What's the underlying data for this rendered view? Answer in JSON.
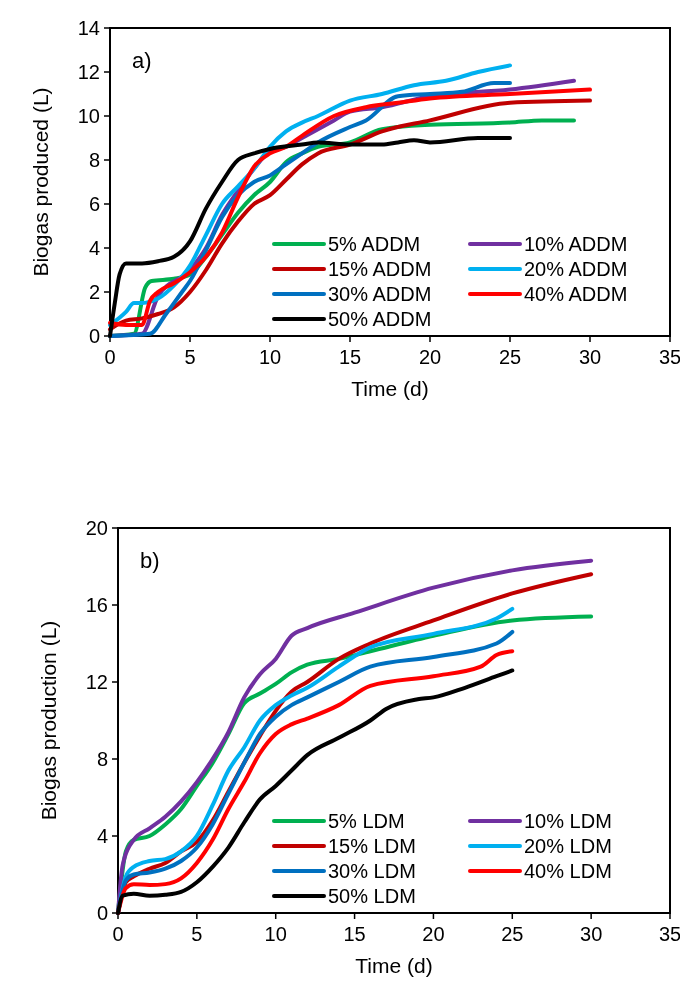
{
  "chart_data": [
    {
      "type": "line",
      "title": "a)",
      "xlabel": "Time (d)",
      "ylabel": "Biogas produced (L)",
      "xlim": [
        0,
        35
      ],
      "xticks": [
        0,
        5,
        10,
        15,
        20,
        25,
        30,
        35
      ],
      "ylim": [
        0,
        14
      ],
      "yticks": [
        0,
        2,
        4,
        6,
        8,
        10,
        12,
        14
      ],
      "grid": false,
      "legend": "bottom right",
      "marker": "none",
      "line_style": "solid",
      "series": [
        {
          "name": "5% ADDM",
          "color": "#00b050",
          "x": [
            0,
            1.5,
            2.2,
            2.6,
            4,
            5,
            6,
            7,
            8,
            9,
            10,
            11,
            12,
            13,
            15,
            17,
            20,
            25,
            27,
            29
          ],
          "values": [
            0,
            0.1,
            2.2,
            2.5,
            2.6,
            2.8,
            3.6,
            4.6,
            5.6,
            6.4,
            7,
            7.9,
            8.3,
            8.6,
            8.8,
            9.4,
            9.6,
            9.7,
            9.8,
            9.8
          ]
        },
        {
          "name": "10% ADDM",
          "color": "#7030a0",
          "x": [
            0,
            2,
            3,
            5,
            6,
            7,
            8,
            9,
            10,
            11,
            12,
            14,
            15,
            17,
            20,
            25,
            29
          ],
          "values": [
            0,
            0.1,
            1.8,
            3,
            4,
            5.5,
            6.6,
            7.6,
            8.4,
            8.6,
            9,
            9.8,
            10.2,
            10.4,
            10.9,
            11.2,
            11.6
          ]
        },
        {
          "name": "15% ADDM",
          "color": "#c00000",
          "x": [
            0,
            1,
            2,
            3,
            4,
            5,
            6,
            7,
            8,
            9,
            10,
            11,
            12,
            13,
            15,
            17,
            20,
            25,
            30
          ],
          "values": [
            0.3,
            0.7,
            0.8,
            1,
            1.3,
            2,
            3,
            4.2,
            5.2,
            6,
            6.4,
            7.1,
            7.8,
            8.3,
            8.7,
            9.3,
            9.8,
            10.6,
            10.7
          ]
        },
        {
          "name": "20% ADDM",
          "color": "#00b0f0",
          "x": [
            0,
            1,
            1.5,
            2,
            3,
            4,
            5,
            6,
            7,
            8,
            9,
            10,
            11,
            12,
            13,
            15,
            17,
            19,
            21,
            23,
            25
          ],
          "values": [
            0.5,
            1.1,
            1.5,
            1.5,
            1.7,
            2.3,
            3.2,
            4.6,
            6,
            6.8,
            7.6,
            8.6,
            9.3,
            9.7,
            10,
            10.7,
            11,
            11.4,
            11.6,
            12,
            12.3
          ]
        },
        {
          "name": "30% ADDM",
          "color": "#0070c0",
          "x": [
            0,
            2.5,
            3.5,
            4.5,
            5,
            6,
            7,
            8,
            9,
            10,
            11,
            12,
            13,
            15,
            16,
            18,
            20,
            22,
            24,
            25
          ],
          "values": [
            0,
            0.1,
            1,
            2,
            2.5,
            3.9,
            5.4,
            6.4,
            7,
            7.3,
            7.8,
            8.3,
            8.8,
            9.5,
            9.8,
            10.9,
            11,
            11.1,
            11.5,
            11.5
          ]
        },
        {
          "name": "40% ADDM",
          "color": "#ff0000",
          "x": [
            0,
            1,
            2,
            2.5,
            3,
            4,
            5,
            6,
            7,
            8,
            9,
            10,
            11,
            12,
            14,
            16,
            18,
            20,
            25,
            30
          ],
          "values": [
            0.6,
            0.5,
            0.5,
            1.6,
            2,
            2.4,
            2.9,
            3.6,
            4.7,
            6.3,
            7.7,
            8.3,
            8.6,
            9.1,
            10,
            10.4,
            10.6,
            10.8,
            11,
            11.2
          ]
        },
        {
          "name": "50% ADDM",
          "color": "#000000",
          "x": [
            0,
            0.3,
            0.6,
            1,
            1.5,
            2,
            3,
            4,
            5,
            6,
            7,
            8,
            9,
            10,
            12,
            13,
            15,
            17,
            18,
            19,
            20,
            23,
            25
          ],
          "values": [
            0,
            1.5,
            2.8,
            3.3,
            3.3,
            3.3,
            3.4,
            3.6,
            4.3,
            5.8,
            7,
            8,
            8.3,
            8.5,
            8.7,
            8.8,
            8.7,
            8.7,
            8.8,
            8.9,
            8.8,
            9,
            9
          ]
        }
      ]
    },
    {
      "type": "line",
      "title": "b)",
      "xlabel": "Time (d)",
      "ylabel": "Biogas production (L)",
      "xlim": [
        0,
        35
      ],
      "xticks": [
        0,
        5,
        10,
        15,
        20,
        25,
        30,
        35
      ],
      "ylim": [
        0,
        20
      ],
      "yticks": [
        0,
        4,
        8,
        12,
        16,
        20
      ],
      "grid": false,
      "legend": "bottom right",
      "marker": "none",
      "line_style": "solid",
      "series": [
        {
          "name": "5% LDM",
          "color": "#00b050",
          "x": [
            0,
            0.5,
            1,
            2,
            3,
            4,
            5,
            6,
            7,
            8,
            9,
            10,
            11,
            12,
            14,
            16,
            20,
            25,
            30
          ],
          "values": [
            0,
            3.2,
            3.8,
            4,
            4.6,
            5.4,
            6.6,
            7.8,
            9.3,
            10.9,
            11.4,
            11.9,
            12.5,
            12.9,
            13.2,
            13.6,
            14.4,
            15.2,
            15.4
          ]
        },
        {
          "name": "10% LDM",
          "color": "#7030a0",
          "x": [
            0,
            0.3,
            1,
            2,
            3,
            4,
            5,
            6,
            7,
            8,
            9,
            10,
            11,
            12,
            15,
            20,
            25,
            30
          ],
          "values": [
            0,
            2.5,
            3.8,
            4.4,
            5,
            5.8,
            6.8,
            8,
            9.4,
            11.2,
            12.4,
            13.2,
            14.4,
            14.8,
            15.6,
            16.9,
            17.8,
            18.3
          ]
        },
        {
          "name": "15% LDM",
          "color": "#c00000",
          "x": [
            0,
            0.5,
            1,
            2,
            3,
            4,
            5,
            6,
            7,
            8,
            9,
            10,
            11,
            12,
            14,
            16,
            20,
            25,
            30
          ],
          "values": [
            0,
            1.6,
            1.9,
            2.3,
            2.6,
            3.2,
            3.7,
            4.8,
            6.3,
            7.8,
            9.2,
            10.5,
            11.5,
            12,
            13.2,
            14,
            15.2,
            16.6,
            17.6
          ]
        },
        {
          "name": "20% LDM",
          "color": "#00b0f0",
          "x": [
            0,
            0.5,
            1,
            2,
            3,
            4,
            5,
            6,
            7,
            8,
            9,
            10,
            11,
            12,
            14,
            16,
            20,
            24,
            25
          ],
          "values": [
            0,
            1.9,
            2.4,
            2.7,
            2.8,
            3.2,
            4,
            5.6,
            7.4,
            8.6,
            10,
            10.8,
            11.3,
            11.7,
            12.8,
            13.8,
            14.5,
            15.3,
            15.8
          ]
        },
        {
          "name": "30% LDM",
          "color": "#0070c0",
          "x": [
            0,
            0.5,
            1,
            2,
            3,
            4,
            5,
            6,
            7,
            8,
            9,
            10,
            11,
            12,
            14,
            16,
            20,
            24,
            25
          ],
          "values": [
            0,
            1.7,
            2,
            2.1,
            2.3,
            2.7,
            3.4,
            4.6,
            6.2,
            7.8,
            9.3,
            10.2,
            10.8,
            11.2,
            12,
            12.8,
            13.3,
            14,
            14.6
          ]
        },
        {
          "name": "40% LDM",
          "color": "#ff0000",
          "x": [
            0,
            0.5,
            1,
            2,
            3,
            4,
            5,
            6,
            7,
            8,
            9,
            10,
            11,
            12,
            14,
            16,
            20,
            23,
            24,
            25
          ],
          "values": [
            0,
            1.3,
            1.5,
            1.45,
            1.5,
            1.8,
            2.6,
            3.8,
            5.4,
            6.8,
            8.3,
            9.3,
            9.8,
            10.1,
            10.8,
            11.8,
            12.3,
            12.8,
            13.4,
            13.6
          ]
        },
        {
          "name": "50% LDM",
          "color": "#000000",
          "x": [
            0,
            0.3,
            1,
            2,
            3,
            4,
            5,
            6,
            7,
            8,
            9,
            10,
            11,
            12,
            14,
            16,
            17,
            19,
            20,
            22,
            24,
            25
          ],
          "values": [
            0,
            0.9,
            1,
            0.9,
            0.95,
            1.1,
            1.6,
            2.4,
            3.4,
            4.7,
            5.9,
            6.6,
            7.4,
            8.2,
            9.1,
            10,
            10.6,
            11.1,
            11.2,
            11.7,
            12.3,
            12.6
          ]
        }
      ]
    }
  ]
}
